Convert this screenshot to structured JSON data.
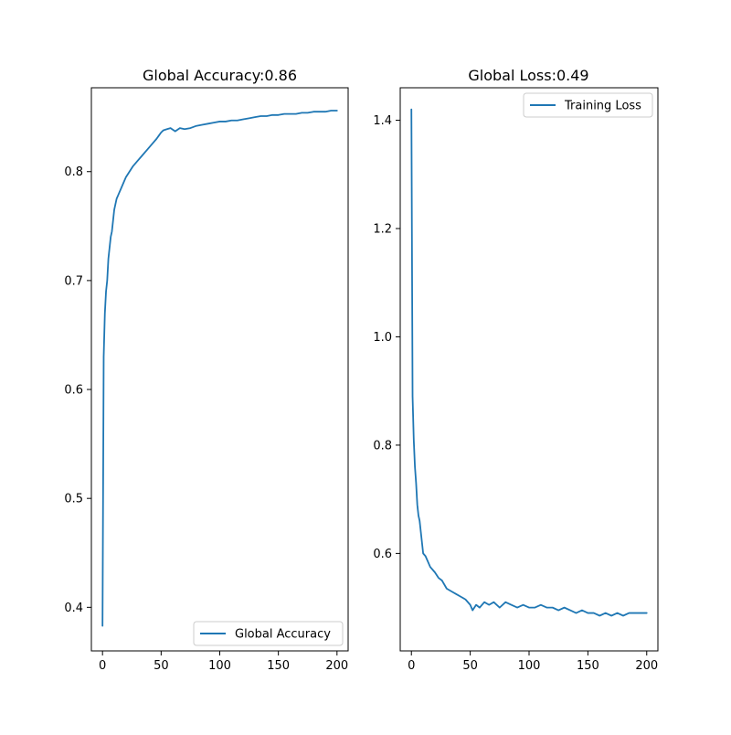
{
  "chart_data": [
    {
      "type": "line",
      "title": "Global Accuracy:0.86",
      "xlabel": "",
      "ylabel": "",
      "xlim": [
        -9.5,
        209.5
      ],
      "ylim": [
        0.36,
        0.877
      ],
      "x_ticks": [
        0,
        50,
        100,
        150,
        200
      ],
      "x_tick_labels": [
        "0",
        "50",
        "100",
        "150",
        "200"
      ],
      "y_ticks": [
        0.4,
        0.5,
        0.6,
        0.7,
        0.8
      ],
      "y_tick_labels": [
        "0.4",
        "0.5",
        "0.6",
        "0.7",
        "0.8"
      ],
      "grid": false,
      "legend_position": "lower-right",
      "series": [
        {
          "name": "Global Accuracy",
          "color": "#1f77b4",
          "x": [
            0,
            1,
            2,
            3,
            4,
            5,
            6,
            7,
            8,
            9,
            10,
            12,
            14,
            16,
            18,
            20,
            23,
            26,
            30,
            34,
            38,
            42,
            46,
            48,
            50,
            52,
            55,
            58,
            62,
            66,
            70,
            75,
            80,
            85,
            90,
            95,
            100,
            105,
            110,
            115,
            120,
            125,
            130,
            135,
            140,
            145,
            150,
            155,
            160,
            165,
            170,
            175,
            180,
            185,
            190,
            195,
            200
          ],
          "y": [
            0.383,
            0.63,
            0.67,
            0.69,
            0.7,
            0.72,
            0.73,
            0.74,
            0.745,
            0.755,
            0.765,
            0.775,
            0.78,
            0.785,
            0.79,
            0.795,
            0.8,
            0.805,
            0.81,
            0.815,
            0.82,
            0.825,
            0.83,
            0.833,
            0.836,
            0.838,
            0.839,
            0.84,
            0.837,
            0.84,
            0.839,
            0.84,
            0.842,
            0.843,
            0.844,
            0.845,
            0.846,
            0.846,
            0.847,
            0.847,
            0.848,
            0.849,
            0.85,
            0.851,
            0.851,
            0.852,
            0.852,
            0.853,
            0.853,
            0.853,
            0.854,
            0.854,
            0.855,
            0.855,
            0.855,
            0.856,
            0.856
          ]
        }
      ]
    },
    {
      "type": "line",
      "title": "Global Loss:0.49",
      "xlabel": "",
      "ylabel": "",
      "xlim": [
        -9.5,
        209.5
      ],
      "ylim": [
        0.42,
        1.46
      ],
      "x_ticks": [
        0,
        50,
        100,
        150,
        200
      ],
      "x_tick_labels": [
        "0",
        "50",
        "100",
        "150",
        "200"
      ],
      "y_ticks": [
        0.6,
        0.8,
        1.0,
        1.2,
        1.4
      ],
      "y_tick_labels": [
        "0.6",
        "0.8",
        "1.0",
        "1.2",
        "1.4"
      ],
      "grid": false,
      "legend_position": "upper-right",
      "series": [
        {
          "name": "Training Loss",
          "color": "#1f77b4",
          "x": [
            0,
            1,
            2,
            3,
            4,
            5,
            6,
            7,
            8,
            9,
            10,
            12,
            14,
            16,
            18,
            20,
            23,
            26,
            30,
            34,
            38,
            42,
            46,
            50,
            52,
            55,
            58,
            62,
            66,
            70,
            75,
            80,
            85,
            90,
            95,
            100,
            105,
            110,
            115,
            120,
            125,
            130,
            135,
            140,
            145,
            150,
            155,
            160,
            165,
            170,
            175,
            180,
            185,
            190,
            195,
            200
          ],
          "y": [
            1.42,
            0.89,
            0.81,
            0.76,
            0.73,
            0.69,
            0.67,
            0.66,
            0.64,
            0.62,
            0.6,
            0.595,
            0.585,
            0.575,
            0.57,
            0.565,
            0.555,
            0.55,
            0.535,
            0.53,
            0.525,
            0.52,
            0.515,
            0.505,
            0.495,
            0.505,
            0.5,
            0.51,
            0.505,
            0.51,
            0.5,
            0.51,
            0.505,
            0.5,
            0.505,
            0.5,
            0.5,
            0.505,
            0.5,
            0.5,
            0.495,
            0.5,
            0.495,
            0.49,
            0.495,
            0.49,
            0.49,
            0.485,
            0.49,
            0.485,
            0.49,
            0.485,
            0.49,
            0.49,
            0.49,
            0.49
          ]
        }
      ]
    }
  ]
}
